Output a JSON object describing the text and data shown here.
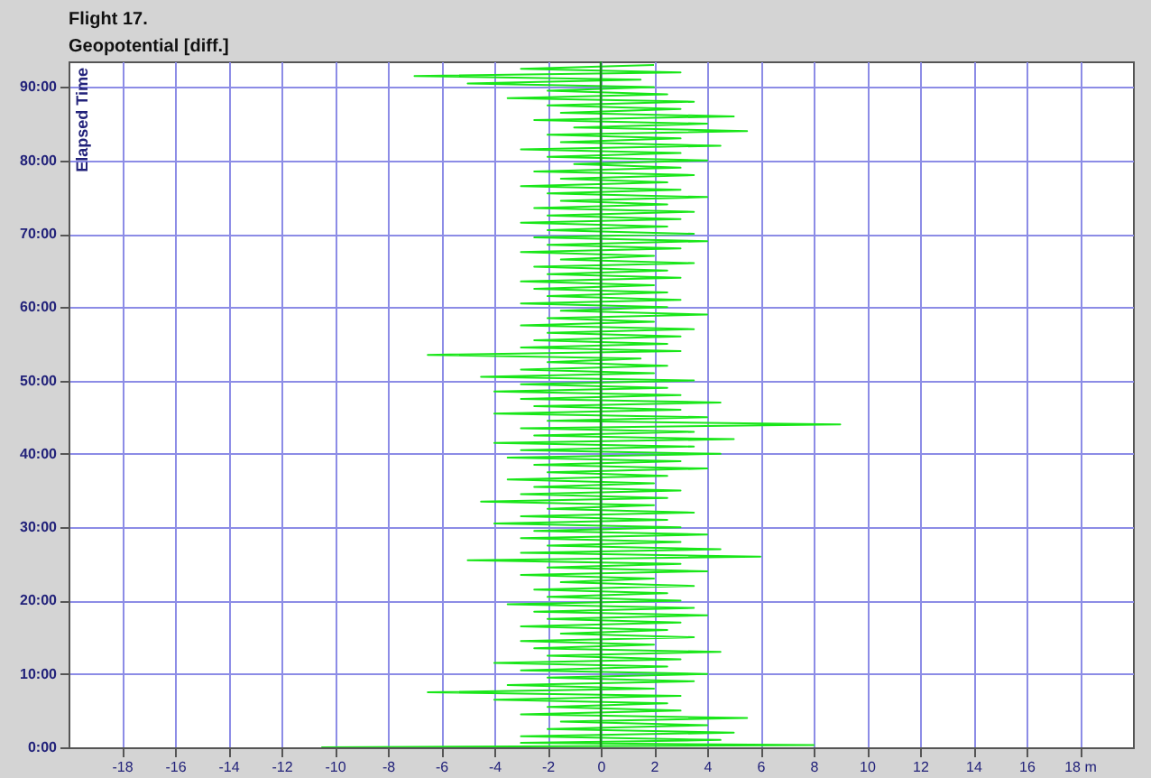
{
  "chart_data": {
    "type": "line",
    "title": "Flight 17.",
    "subtitle": "Geopotential [diff.]",
    "ylabel": "Elapsed Time",
    "xlim": [
      -20,
      20
    ],
    "xticks": [
      -18,
      -16,
      -14,
      -12,
      -10,
      -8,
      -6,
      -4,
      -2,
      0,
      2,
      4,
      6,
      8,
      10,
      12,
      14,
      16,
      {
        "value": 18,
        "label": "18 m"
      }
    ],
    "ylim": [
      0,
      93.5
    ],
    "yticks": [
      {
        "value": 0,
        "label": "0:00"
      },
      {
        "value": 10,
        "label": "10:00"
      },
      {
        "value": 20,
        "label": "20:00"
      },
      {
        "value": 30,
        "label": "30:00"
      },
      {
        "value": 40,
        "label": "40:00"
      },
      {
        "value": 50,
        "label": "50:00"
      },
      {
        "value": 60,
        "label": "60:00"
      },
      {
        "value": 70,
        "label": "70:00"
      },
      {
        "value": 80,
        "label": "80:00"
      },
      {
        "value": 90,
        "label": "90:00"
      }
    ],
    "grid": true,
    "marker": "none",
    "line_style": "solid",
    "ref_lines": [
      {
        "axis": "x",
        "value": 0,
        "color": "#1a8a1a"
      }
    ],
    "series": [
      {
        "color": "#19e619",
        "x": [
          -10.5,
          8,
          -3,
          4.5,
          -3,
          5,
          -2,
          4,
          -1.5,
          5.5,
          -3,
          3,
          -2,
          2.5,
          -4,
          3,
          -6.5,
          2,
          -3.5,
          3.5,
          -2,
          4,
          -3,
          2.5,
          -4,
          3,
          -2,
          4.5,
          -2.5,
          2,
          -3,
          3.5,
          -1.5,
          2.5,
          -3,
          3,
          -2,
          4,
          -2.5,
          3.5,
          -3.5,
          3,
          -2,
          2.5,
          -2.5,
          3.5,
          -1.5,
          2,
          -3,
          4,
          -2,
          3,
          -5,
          6,
          -3,
          4.5,
          -2,
          3,
          -3,
          4,
          -2.5,
          3,
          -4,
          2.5,
          -3,
          3.5,
          -2,
          2,
          -4.5,
          2.5,
          -3,
          3,
          -2.5,
          2,
          -3.5,
          2.5,
          -2,
          4,
          -2.5,
          3,
          -3.5,
          4.5,
          -3,
          3.5,
          -4,
          5,
          -2.5,
          3.5,
          -3,
          9,
          -2,
          4,
          -4,
          3,
          -2.5,
          4.5,
          -3,
          3,
          -4,
          2.5,
          -3,
          3.5,
          -4.5,
          2,
          -3,
          2.5,
          -2,
          1.5,
          -6.5,
          3,
          -3,
          2.5,
          -2.5,
          3,
          -2,
          3.5,
          -3,
          2,
          -2,
          4,
          -1.5,
          2.5,
          -3,
          3,
          -2,
          2.5,
          -2.5,
          2,
          -3,
          3,
          -2,
          2.5,
          -2.5,
          3.5,
          -1.5,
          2,
          -3,
          3,
          -2,
          4,
          -2.5,
          3.5,
          -2,
          2.5,
          -3,
          3,
          -2,
          3.5,
          -2.5,
          2.5,
          -1.5,
          4,
          -2,
          3,
          -3,
          2.5,
          -1.5,
          3.5,
          -2.5,
          3,
          -1,
          4,
          -2,
          3,
          -3,
          4.5,
          -1.5,
          3,
          -2,
          5.5,
          -1,
          4,
          -2.5,
          5,
          -1.5,
          3,
          -2,
          3.5,
          -3.5,
          2.5,
          -2,
          2,
          -5,
          1.5,
          -7,
          3,
          -3,
          2
        ],
        "values": [
          0,
          0.3,
          0.6,
          1,
          1.5,
          2,
          2.5,
          3,
          3.5,
          4,
          4.5,
          5,
          5.5,
          6,
          6.5,
          7,
          7.5,
          8,
          8.5,
          9,
          9.5,
          10,
          10.5,
          11,
          11.5,
          12,
          12.5,
          13,
          13.5,
          14,
          14.5,
          15,
          15.5,
          16,
          16.5,
          17,
          17.5,
          18,
          18.5,
          19,
          19.5,
          20,
          20.5,
          21,
          21.5,
          22,
          22.5,
          23,
          23.5,
          24,
          24.5,
          25,
          25.5,
          26,
          26.5,
          27,
          27.5,
          28,
          28.5,
          29,
          29.5,
          30,
          30.5,
          31,
          31.5,
          32,
          32.5,
          33,
          33.5,
          34,
          34.5,
          35,
          35.5,
          36,
          36.5,
          37,
          37.5,
          38,
          38.5,
          39,
          39.5,
          40,
          40.5,
          41,
          41.5,
          42,
          42.5,
          43,
          43.5,
          44,
          44.5,
          45,
          45.5,
          46,
          46.5,
          47,
          47.5,
          48,
          48.5,
          49,
          49.5,
          50,
          50.5,
          51,
          51.5,
          52,
          52.5,
          53,
          53.5,
          54,
          54.5,
          55,
          55.5,
          56,
          56.5,
          57,
          57.5,
          58,
          58.5,
          59,
          59.5,
          60,
          60.5,
          61,
          61.5,
          62,
          62.5,
          63,
          63.5,
          64,
          64.5,
          65,
          65.5,
          66,
          66.5,
          67,
          67.5,
          68,
          68.5,
          69,
          69.5,
          70,
          70.5,
          71,
          71.5,
          72,
          72.5,
          73,
          73.5,
          74,
          74.5,
          75,
          75.5,
          76,
          76.5,
          77,
          77.5,
          78,
          78.5,
          79,
          79.5,
          80,
          80.5,
          81,
          81.5,
          82,
          82.5,
          83,
          83.5,
          84,
          84.5,
          85,
          85.5,
          86,
          86.5,
          87,
          87.5,
          88,
          88.5,
          89,
          89.5,
          90,
          90.5,
          91,
          91.5,
          92,
          92.5,
          93
        ]
      }
    ]
  }
}
